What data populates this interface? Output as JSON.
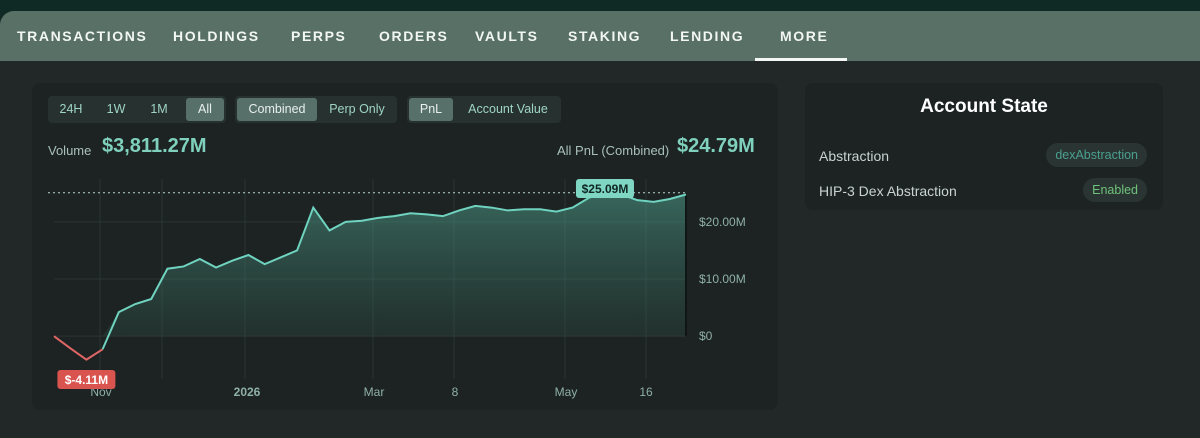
{
  "tabs": [
    "TRANSACTIONS",
    "HOLDINGS",
    "PERPS",
    "ORDERS",
    "VAULTS",
    "STAKING",
    "LENDING",
    "MORE"
  ],
  "active_tab": "MORE",
  "time_ranges": [
    "24H",
    "1W",
    "1M",
    "All"
  ],
  "active_range": "All",
  "modes": [
    "Combined",
    "Perp Only"
  ],
  "active_mode": "Combined",
  "metrics": [
    "PnL",
    "Account Value"
  ],
  "active_metric": "PnL",
  "summary": {
    "volume_label": "Volume",
    "volume_value": "$3,811.27M",
    "pnl_label": "All PnL (Combined)",
    "pnl_value": "$24.79M"
  },
  "chart_data": {
    "type": "area",
    "x_ticks": [
      "Nov",
      "2026",
      "Mar",
      "8",
      "May",
      "16"
    ],
    "y_ticks": [
      "$20.00M",
      "$10.00M",
      "$0"
    ],
    "ylim": [
      -7.5,
      27.5
    ],
    "values": [
      0.0,
      -2.1,
      -4.11,
      -2.3,
      4.2,
      5.6,
      6.5,
      11.8,
      12.2,
      13.5,
      12.0,
      13.2,
      14.2,
      12.6,
      13.8,
      15.0,
      22.5,
      18.5,
      20.0,
      20.2,
      20.7,
      21.0,
      21.5,
      21.3,
      21.0,
      22.0,
      22.8,
      22.5,
      22.0,
      22.2,
      22.2,
      21.8,
      22.5,
      24.2,
      25.09,
      24.8,
      23.8,
      23.5,
      24.0,
      24.79
    ],
    "max_label": "$25.09M",
    "min_label": "$-4.11M",
    "reference_value": 25.09,
    "colors": {
      "line": "#6fd3c0",
      "negative": "#e06666",
      "max_badge": "#7fd6c3",
      "min_badge": "#d9534f"
    }
  },
  "account_state": {
    "title": "Account State",
    "rows": [
      {
        "label": "Abstraction",
        "value": "dexAbstraction",
        "color": "#4a9f8f"
      },
      {
        "label": "HIP-3 Dex Abstraction",
        "value": "Enabled",
        "color": "#6fc27a"
      }
    ]
  }
}
